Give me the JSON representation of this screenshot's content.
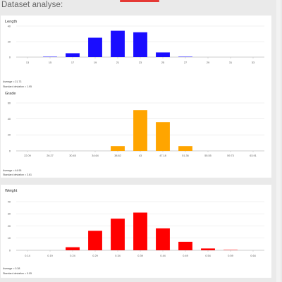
{
  "page": {
    "title": "Dataset analyse:",
    "accent_color": "#e53935"
  },
  "panels": [
    {
      "title": "Length",
      "average": "Average = 21.73",
      "std": "Standard deviation = 1.95",
      "color": "#1a0dff"
    },
    {
      "title": "Grade",
      "average": "Average = 44.95",
      "std": "Standard deviation = 3.61",
      "color": "#ffa500"
    },
    {
      "title": "Weight",
      "average": "Average = 0.38",
      "std": "Standard deviation = 0.05",
      "color": "#ff0000"
    }
  ],
  "chart_data": [
    {
      "type": "bar",
      "title": "Length",
      "categories": [
        "13",
        "15",
        "17",
        "19",
        "21",
        "23",
        "25",
        "27",
        "29",
        "31",
        "33"
      ],
      "values": [
        0,
        0.5,
        5,
        25,
        34,
        32,
        6,
        0.5,
        0,
        0,
        0
      ],
      "ylim": [
        0,
        40
      ],
      "yticks": [
        "0",
        "20",
        "40"
      ],
      "grid": true
    },
    {
      "type": "bar",
      "title": "Grade",
      "categories": [
        "22.09",
        "26.27",
        "30.45",
        "34.64",
        "38.82",
        "43",
        "47.18",
        "51.36",
        "55.55",
        "59.73",
        "63.91"
      ],
      "values": [
        0,
        0,
        0,
        0,
        6,
        51,
        36,
        6,
        0,
        0,
        0
      ],
      "ylim": [
        0,
        60
      ],
      "yticks": [
        "0",
        "20",
        "40",
        "60"
      ],
      "grid": true
    },
    {
      "type": "bar",
      "title": "Weight",
      "categories": [
        "0.14",
        "0.19",
        "0.24",
        "0.29",
        "0.34",
        "0.39",
        "0.44",
        "0.49",
        "0.54",
        "0.59",
        "0.64"
      ],
      "values": [
        0,
        0,
        2.5,
        16,
        26,
        31,
        18,
        7,
        1.5,
        0.3,
        0
      ],
      "ylim": [
        0,
        40
      ],
      "yticks": [
        "0",
        "10",
        "20",
        "30",
        "40"
      ],
      "grid": true
    }
  ]
}
